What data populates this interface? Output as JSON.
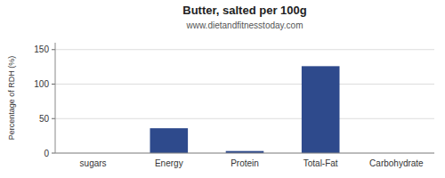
{
  "chart_data": {
    "type": "bar",
    "title": "Butter, salted per 100g",
    "subtitle": "www.dietandfitnesstoday.com",
    "ylabel": "Percentage of RDH (%)",
    "categories": [
      "sugars",
      "Energy",
      "Protein",
      "Total-Fat",
      "Carbohydrate"
    ],
    "values": [
      0,
      36,
      3,
      126,
      0
    ],
    "color": "#2e4a8c",
    "ylim": [
      0,
      160
    ],
    "yticks": [
      0,
      50,
      100,
      150
    ],
    "grid": true
  }
}
